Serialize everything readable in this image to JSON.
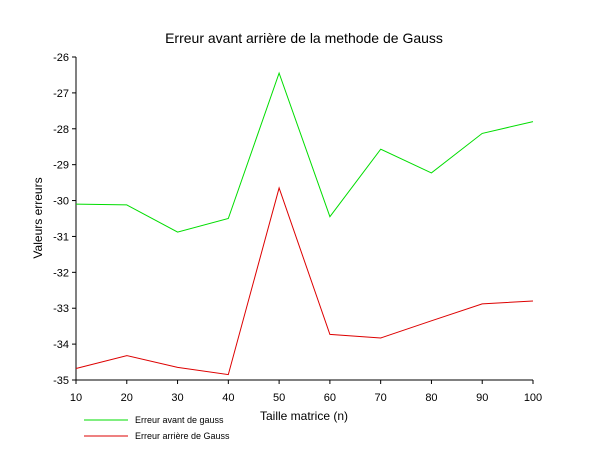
{
  "chart_data": {
    "type": "line",
    "title": "Erreur avant arrière de la methode de Gauss",
    "xlabel": "Taille matrice (n)",
    "ylabel": "Valeurs erreurs",
    "x": [
      10,
      20,
      30,
      40,
      50,
      60,
      70,
      80,
      90,
      100
    ],
    "xlim": [
      10,
      100
    ],
    "ylim": [
      -35,
      -26
    ],
    "x_ticks": [
      "10",
      "20",
      "30",
      "40",
      "50",
      "60",
      "70",
      "80",
      "90",
      "100"
    ],
    "y_ticks": [
      "-26",
      "-27",
      "-28",
      "-29",
      "-30",
      "-31",
      "-32",
      "-33",
      "-34",
      "-35"
    ],
    "grid": false,
    "legend_position": "bottom-left",
    "series": [
      {
        "name": "Erreur avant de gauss",
        "color": "#00dd00",
        "values": [
          -30.1,
          -30.12,
          -30.88,
          -30.5,
          -26.45,
          -30.45,
          -28.57,
          -29.23,
          -28.13,
          -27.8
        ]
      },
      {
        "name": "Erreur arrière de Gauss",
        "color": "#dd0000",
        "values": [
          -34.68,
          -34.32,
          -34.65,
          -34.85,
          -29.65,
          -33.73,
          -33.83,
          -33.35,
          -32.88,
          -32.8
        ]
      }
    ]
  }
}
